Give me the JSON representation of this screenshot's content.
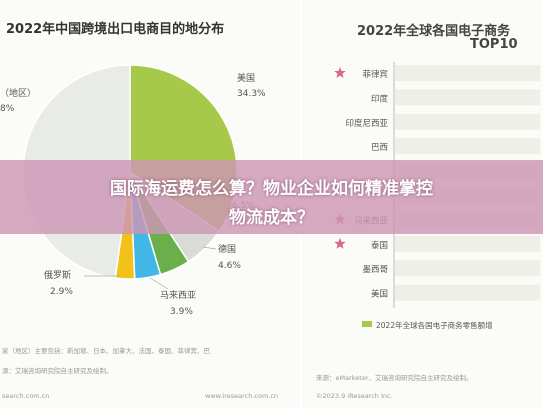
{
  "left_chart": {
    "title": "2022年中国跨境出口电商目的地分布",
    "notes": [
      "家（地区）主要包括：新加坡、日本、加拿大、法国、泰国、菲律宾、巴",
      "源：艾瑞咨询研究院自主研究及绘制。",
      "search.com.cn"
    ],
    "footer_right": "www.iresearch.com.cn"
  },
  "right_chart": {
    "title_line1": "2022年全球各国电子商务",
    "title_line2": "TOP10",
    "legend": "2022年全球各国电子商务零售额增",
    "notes": [
      "来源：eMarketer、艾瑞咨询研究院自主研究及绘制。",
      "©2023.9 iResearch Inc."
    ]
  },
  "overlay": {
    "line1": "国际海运费怎么算？物业企业如何精准掌控",
    "line2": "物流成本？"
  },
  "colors": {
    "us": "#a6c94a",
    "other": "#e9ebe6",
    "gray": "#d9dcd4",
    "de": "#6aaf4a",
    "my": "#41b7e6",
    "ru": "#f2c21b",
    "bar": "#a6c94a",
    "star": "#d86a84",
    "overlay": "#cd96b4"
  },
  "chart_data": [
    {
      "type": "pie",
      "title": "2022年中国跨境出口电商目的地分布",
      "slices": [
        {
          "name": "美国",
          "label": "34.3%",
          "value": 34.3,
          "color": "#a6c94a"
        },
        {
          "name": "",
          "label": "6.5%",
          "value": 6.5,
          "color": "#d9dcd4"
        },
        {
          "name": "德国",
          "label": "4.6%",
          "value": 4.6,
          "color": "#6aaf4a"
        },
        {
          "name": "马来西亚",
          "label": "3.9%",
          "value": 3.9,
          "color": "#41b7e6"
        },
        {
          "name": "俄罗斯",
          "label": "2.9%",
          "value": 2.9,
          "color": "#f2c21b"
        },
        {
          "name": "",
          "label": "",
          "value": 47.8,
          "color": "#e9ebe6"
        }
      ],
      "side_label_top": "（地区）",
      "side_label_value": "8%"
    },
    {
      "type": "bar",
      "title": "2022年全球各国电子商务 TOP10",
      "categories": [
        "菲律宾",
        "印度",
        "印度尼西亚",
        "巴西",
        "",
        "",
        "马来西亚",
        "泰国",
        "墨西哥",
        "美国"
      ],
      "starred": [
        true,
        false,
        false,
        false,
        false,
        false,
        true,
        true,
        false,
        false
      ],
      "legend": "2022年全球各国电子商务零售额增"
    }
  ]
}
